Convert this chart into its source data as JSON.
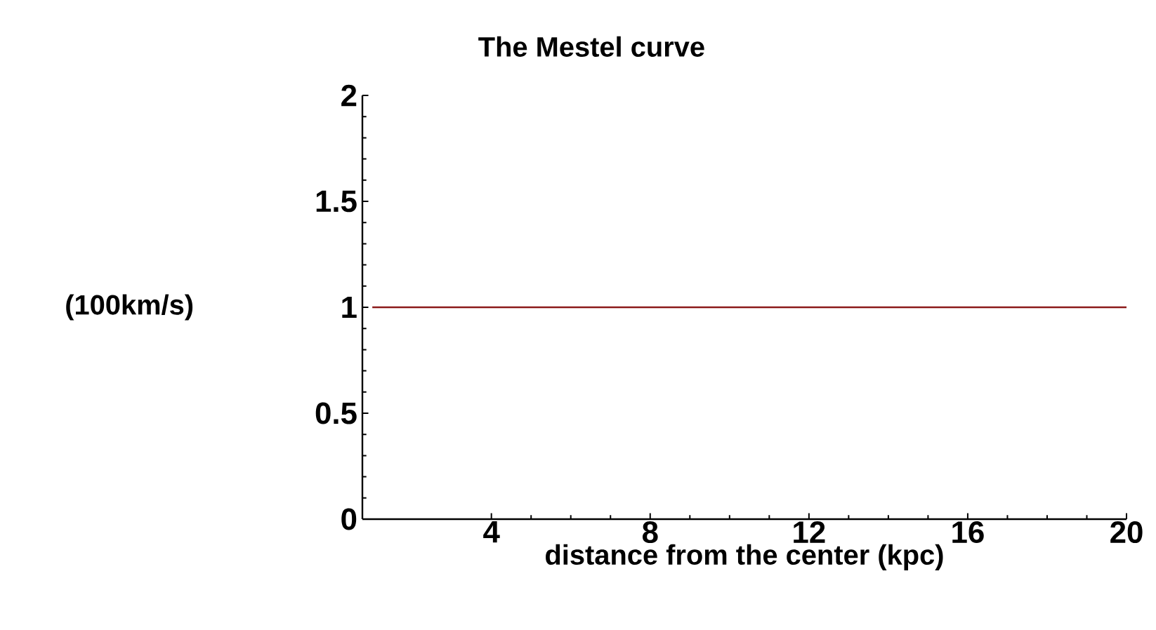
{
  "chart_data": {
    "type": "line",
    "title": "The Mestel curve",
    "xlabel": "distance from the center (kpc)",
    "ylabel": "(100km/s)",
    "x": [
      1,
      20
    ],
    "series": [
      {
        "color": "#8b1a1a",
        "values": [
          1,
          1
        ]
      }
    ],
    "xlim": [
      0.75,
      20
    ],
    "xticks": [
      4,
      8,
      12,
      16,
      20
    ],
    "ylim": [
      0,
      2
    ],
    "yticks": [
      0,
      0.5,
      1,
      1.5,
      2
    ],
    "grid": false,
    "marker": "none",
    "line_style": "solid"
  }
}
